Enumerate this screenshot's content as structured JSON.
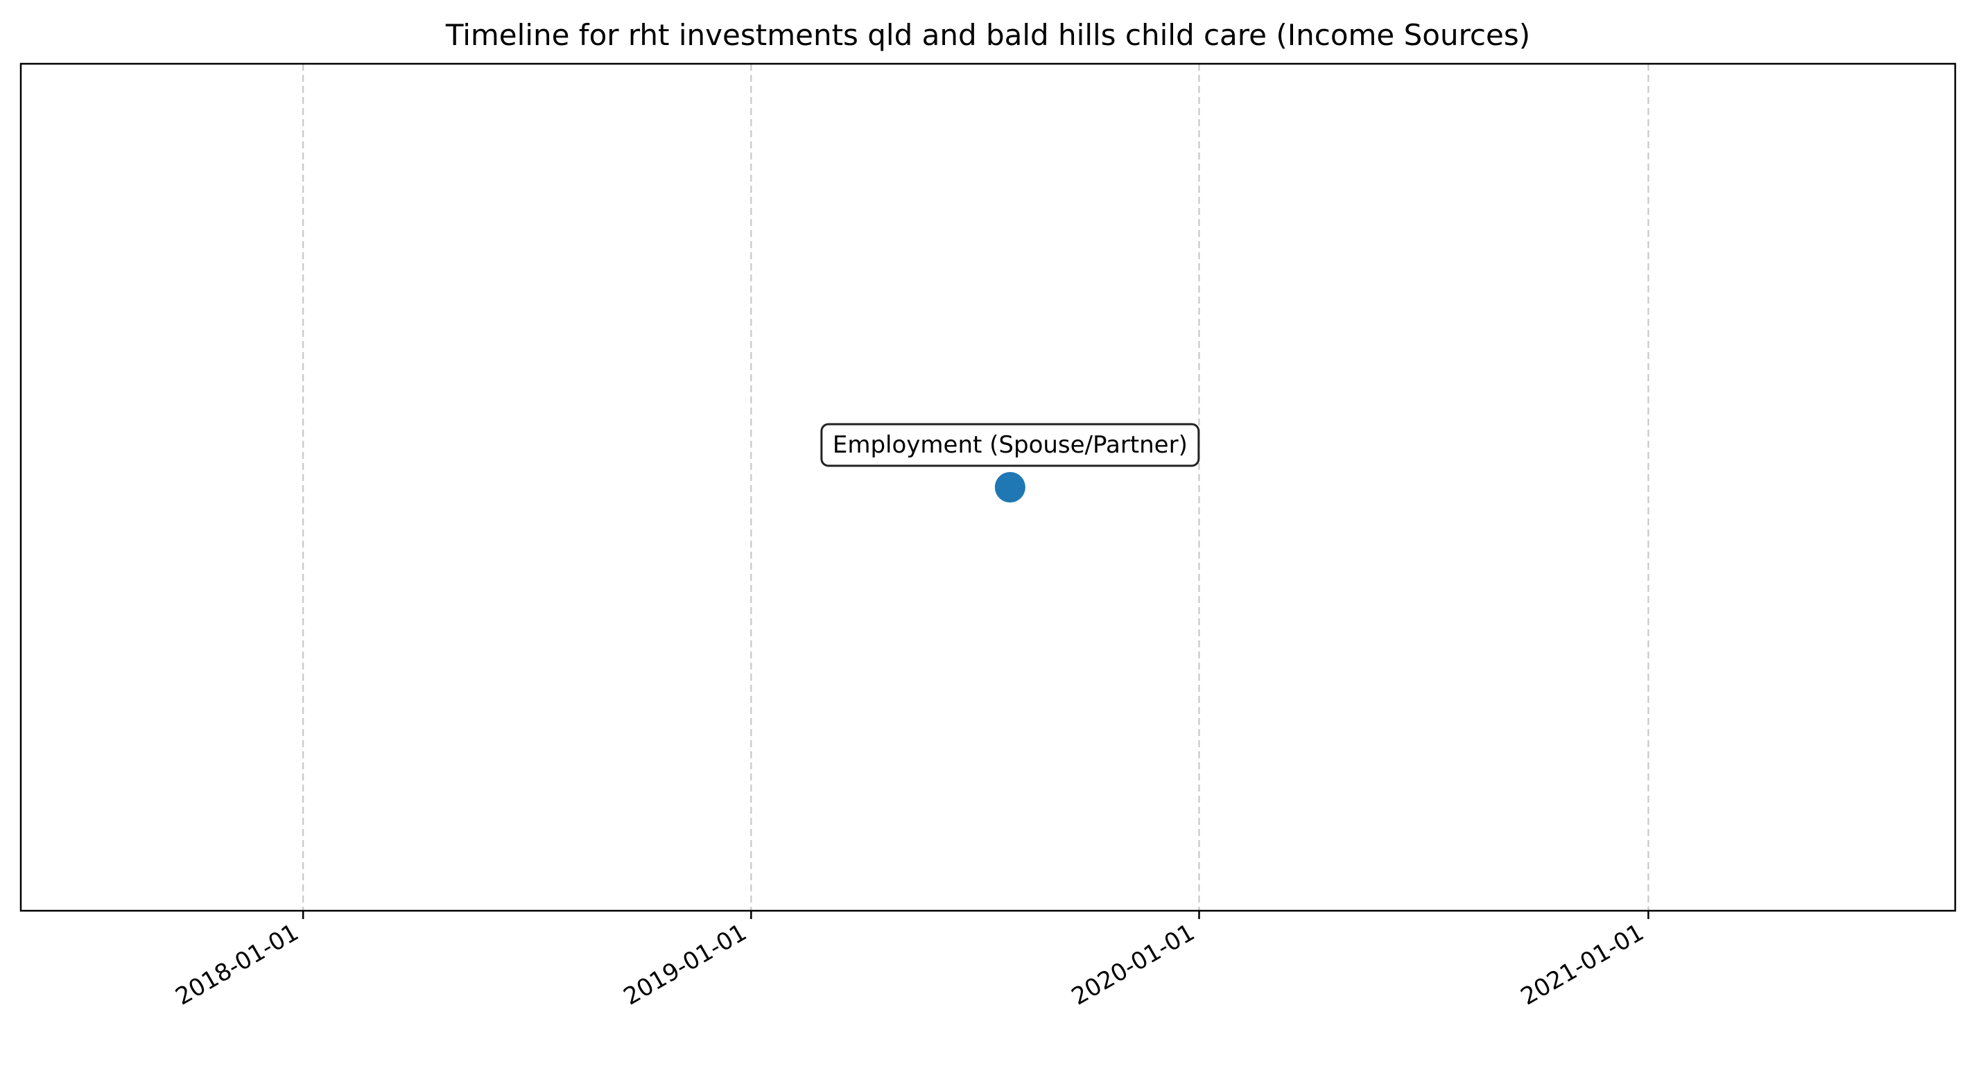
{
  "chart_data": {
    "type": "scatter",
    "title": "Timeline for rht investments qld and bald hills child care (Income Sources)",
    "xlabel": "",
    "ylabel": "",
    "x_axis_type": "date",
    "xlim": [
      "2017-05-16",
      "2021-09-08"
    ],
    "ylim": [
      -1,
      1
    ],
    "x_ticks": [
      "2018-01-01",
      "2019-01-01",
      "2020-01-01",
      "2021-01-01"
    ],
    "y_ticks_visible": false,
    "grid": "x-only, dashed",
    "legend": "none",
    "points": [
      {
        "x": "2019-07-31",
        "y": 0,
        "label": "Employment (Spouse/Partner)"
      }
    ]
  },
  "colors": {
    "marker": "#1f77b4",
    "grid": "#c8c8c8",
    "axes": "#000000",
    "annotation_border": "#222222"
  }
}
